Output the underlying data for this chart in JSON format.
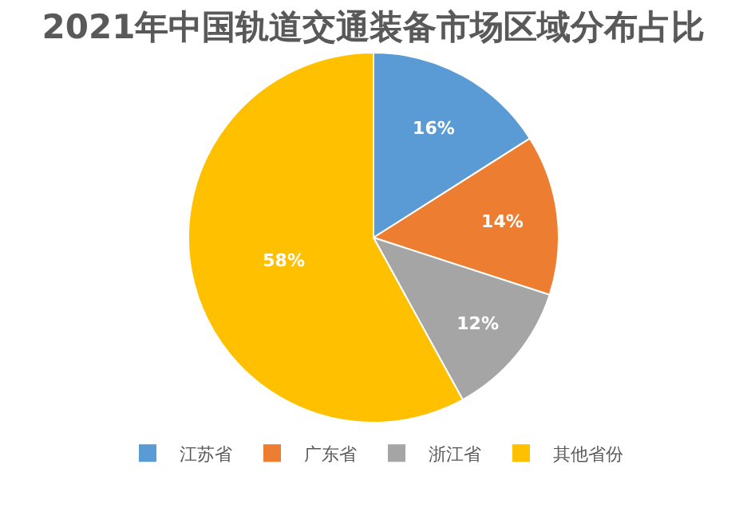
{
  "chart_data": {
    "type": "pie",
    "title": "2021年中国轨道交通装备市场区域分布占比",
    "categories": [
      "江苏省",
      "广东省",
      "浙江省",
      "其他省份"
    ],
    "values": [
      16,
      14,
      12,
      58
    ],
    "value_labels": [
      "16%",
      "14%",
      "12%",
      "58%"
    ],
    "colors": [
      "#5b9bd5",
      "#ed7d31",
      "#a5a5a5",
      "#ffc000"
    ],
    "legend": "bottom"
  }
}
